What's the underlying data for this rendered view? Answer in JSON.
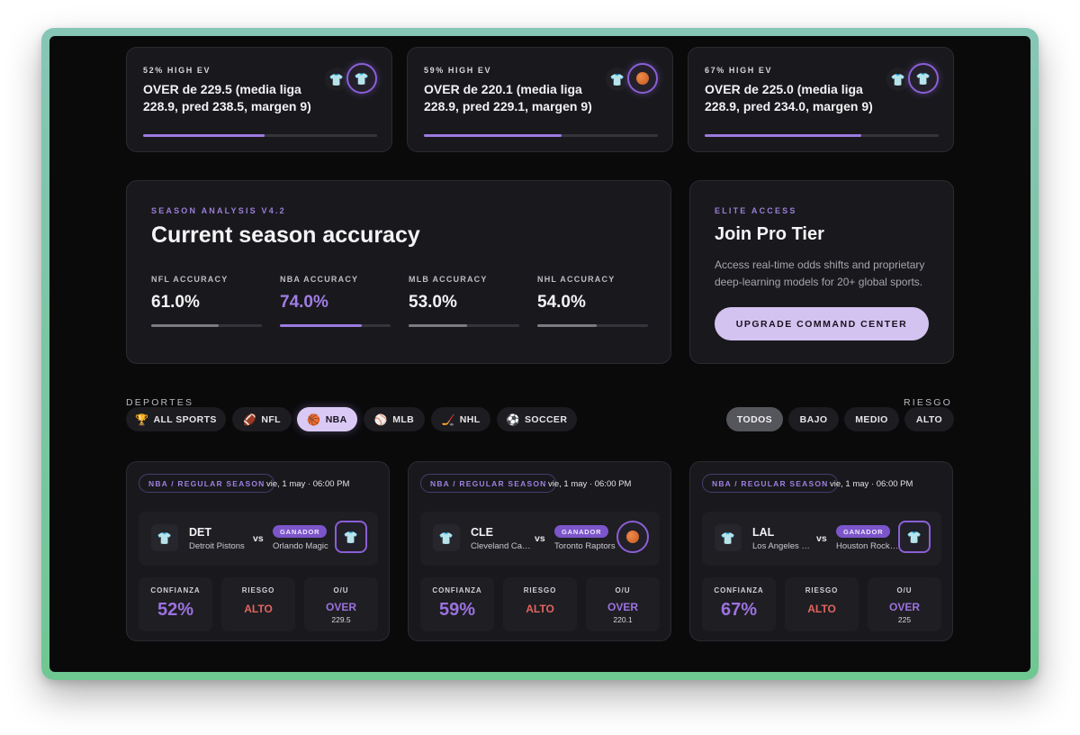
{
  "picks": [
    {
      "tag": "52% HIGH EV",
      "text": "OVER de 229.5 (media liga 228.9, pred 238.5, margen 9)",
      "confidence": 0.52,
      "small_logo": "jersey-icon",
      "main_logo": "jersey-icon"
    },
    {
      "tag": "59% HIGH EV",
      "text": "OVER de 220.1 (media liga 228.9, pred 229.1, margen 9)",
      "confidence": 0.59,
      "small_logo": "jersey-icon",
      "main_logo": "basketball-icon"
    },
    {
      "tag": "67% HIGH EV",
      "text": "OVER de 225.0 (media liga 228.9, pred 234.0, margen 9)",
      "confidence": 0.67,
      "small_logo": "jersey-icon",
      "main_logo": "jersey-icon"
    }
  ],
  "season": {
    "eyebrow": "SEASON ANALYSIS V4.2",
    "title": "Current season accuracy",
    "metrics": [
      {
        "label": "NFL ACCURACY",
        "value": "61.0%",
        "fraction": 0.61,
        "highlight": false
      },
      {
        "label": "NBA ACCURACY",
        "value": "74.0%",
        "fraction": 0.74,
        "highlight": true
      },
      {
        "label": "MLB ACCURACY",
        "value": "53.0%",
        "fraction": 0.53,
        "highlight": false
      },
      {
        "label": "NHL ACCURACY",
        "value": "54.0%",
        "fraction": 0.54,
        "highlight": false
      }
    ]
  },
  "pro": {
    "eyebrow": "ELITE ACCESS",
    "title": "Join Pro Tier",
    "description": "Access real-time odds shifts and proprietary deep-learning models for 20+ global sports.",
    "button": "UPGRADE COMMAND CENTER"
  },
  "filters": {
    "sports_label": "DEPORTES",
    "risk_label": "RIESGO",
    "sports": [
      {
        "label": "ALL SPORTS",
        "icon": "trophy-icon",
        "glyph": "🏆",
        "active": false
      },
      {
        "label": "NFL",
        "icon": "football-icon",
        "glyph": "🏈",
        "active": false
      },
      {
        "label": "NBA",
        "icon": "basketball-icon",
        "glyph": "🏀",
        "active": true
      },
      {
        "label": "MLB",
        "icon": "baseball-icon",
        "glyph": "⚾",
        "active": false
      },
      {
        "label": "NHL",
        "icon": "hockey-icon",
        "glyph": "🏒",
        "active": false
      },
      {
        "label": "SOCCER",
        "icon": "soccer-icon",
        "glyph": "⚽",
        "active": false
      }
    ],
    "risks": [
      {
        "label": "TODOS",
        "active": true
      },
      {
        "label": "BAJO",
        "active": false
      },
      {
        "label": "MEDIO",
        "active": false
      },
      {
        "label": "ALTO",
        "active": false
      }
    ]
  },
  "games": [
    {
      "league": "NBA / REGULAR SEASON",
      "date": "vie, 1 may · 06:00 PM",
      "home_abbr": "DET",
      "home_name": "Detroit Pistons",
      "vs": "vs",
      "winner_label": "GANADOR",
      "away_name": "Orlando Magic",
      "winner_logo": "jersey-icon",
      "confidence_label": "CONFIANZA",
      "confidence": "52%",
      "risk_label": "RIESGO",
      "risk": "ALTO",
      "ou_label": "O/U",
      "ou": "OVER",
      "ou_line": "229.5"
    },
    {
      "league": "NBA / REGULAR SEASON",
      "date": "vie, 1 may · 06:00 PM",
      "home_abbr": "CLE",
      "home_name": "Cleveland Cavaliers",
      "vs": "vs",
      "winner_label": "GANADOR",
      "away_name": "Toronto Raptors",
      "winner_logo": "basketball-icon",
      "confidence_label": "CONFIANZA",
      "confidence": "59%",
      "risk_label": "RIESGO",
      "risk": "ALTO",
      "ou_label": "O/U",
      "ou": "OVER",
      "ou_line": "220.1"
    },
    {
      "league": "NBA / REGULAR SEASON",
      "date": "vie, 1 may · 06:00 PM",
      "home_abbr": "LAL",
      "home_name": "Los Angeles Lakers",
      "vs": "vs",
      "winner_label": "GANADOR",
      "away_name": "Houston Rockets",
      "winner_logo": "jersey-icon",
      "confidence_label": "CONFIANZA",
      "confidence": "67%",
      "risk_label": "RIESGO",
      "risk": "ALTO",
      "ou_label": "O/U",
      "ou": "OVER",
      "ou_line": "225"
    }
  ]
}
